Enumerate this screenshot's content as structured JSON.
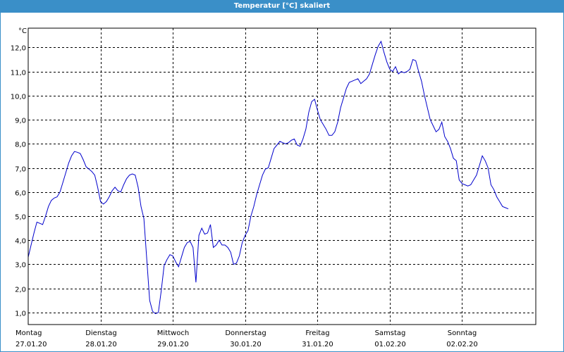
{
  "window": {
    "title": "Temperatur [°C] skaliert"
  },
  "colors": {
    "titlebar": "#3a8fc8",
    "line": "#0000cc",
    "grid": "#000000",
    "background": "#ffffff"
  },
  "chart_data": {
    "type": "line",
    "title": "Temperatur [°C] skaliert",
    "ylabel": "°C",
    "xlabel": "",
    "ylim": [
      0.5,
      12.8
    ],
    "yticks": [
      "1,0",
      "2,0",
      "3,0",
      "4,0",
      "5,0",
      "6,0",
      "7,0",
      "8,0",
      "9,0",
      "10,0",
      "11,0",
      "12,0"
    ],
    "ytick_values": [
      1,
      2,
      3,
      4,
      5,
      6,
      7,
      8,
      9,
      10,
      11,
      12
    ],
    "xlim": [
      0,
      7.02
    ],
    "day_labels": [
      {
        "day": "Montag",
        "date": "27.01.20"
      },
      {
        "day": "Dienstag",
        "date": "28.01.20"
      },
      {
        "day": "Mittwoch",
        "date": "29.01.20"
      },
      {
        "day": "Donnerstag",
        "date": "30.01.20"
      },
      {
        "day": "Freitag",
        "date": "31.01.20"
      },
      {
        "day": "Samstag",
        "date": "01.02.20"
      },
      {
        "day": "Sonntag",
        "date": "02.02.20"
      }
    ],
    "grid": true,
    "series": [
      {
        "color": "#0000cc",
        "points": [
          [
            0.0,
            3.3
          ],
          [
            0.04,
            3.8
          ],
          [
            0.08,
            4.3
          ],
          [
            0.12,
            4.75
          ],
          [
            0.16,
            4.7
          ],
          [
            0.2,
            4.65
          ],
          [
            0.24,
            5.0
          ],
          [
            0.28,
            5.4
          ],
          [
            0.32,
            5.65
          ],
          [
            0.36,
            5.75
          ],
          [
            0.4,
            5.8
          ],
          [
            0.44,
            6.0
          ],
          [
            0.48,
            6.4
          ],
          [
            0.52,
            6.8
          ],
          [
            0.56,
            7.2
          ],
          [
            0.6,
            7.5
          ],
          [
            0.64,
            7.68
          ],
          [
            0.68,
            7.65
          ],
          [
            0.72,
            7.6
          ],
          [
            0.76,
            7.35
          ],
          [
            0.8,
            7.05
          ],
          [
            0.84,
            6.95
          ],
          [
            0.88,
            6.85
          ],
          [
            0.92,
            6.7
          ],
          [
            0.96,
            6.2
          ],
          [
            1.0,
            5.6
          ],
          [
            1.04,
            5.5
          ],
          [
            1.08,
            5.6
          ],
          [
            1.12,
            5.8
          ],
          [
            1.16,
            6.05
          ],
          [
            1.2,
            6.2
          ],
          [
            1.24,
            6.05
          ],
          [
            1.28,
            6.0
          ],
          [
            1.32,
            6.3
          ],
          [
            1.36,
            6.55
          ],
          [
            1.4,
            6.7
          ],
          [
            1.44,
            6.75
          ],
          [
            1.48,
            6.7
          ],
          [
            1.52,
            6.2
          ],
          [
            1.56,
            5.4
          ],
          [
            1.6,
            4.9
          ],
          [
            1.64,
            3.2
          ],
          [
            1.68,
            1.5
          ],
          [
            1.72,
            1.05
          ],
          [
            1.76,
            0.95
          ],
          [
            1.8,
            1.0
          ],
          [
            1.84,
            1.9
          ],
          [
            1.88,
            2.95
          ],
          [
            1.92,
            3.2
          ],
          [
            1.96,
            3.4
          ],
          [
            2.0,
            3.35
          ],
          [
            2.04,
            3.1
          ],
          [
            2.08,
            2.9
          ],
          [
            2.12,
            3.3
          ],
          [
            2.16,
            3.7
          ],
          [
            2.2,
            3.9
          ],
          [
            2.24,
            3.95
          ],
          [
            2.28,
            3.7
          ],
          [
            2.32,
            2.25
          ],
          [
            2.36,
            4.2
          ],
          [
            2.4,
            4.5
          ],
          [
            2.44,
            4.25
          ],
          [
            2.48,
            4.3
          ],
          [
            2.52,
            4.65
          ],
          [
            2.56,
            3.7
          ],
          [
            2.6,
            3.8
          ],
          [
            2.64,
            4.0
          ],
          [
            2.68,
            3.8
          ],
          [
            2.72,
            3.8
          ],
          [
            2.76,
            3.7
          ],
          [
            2.8,
            3.5
          ],
          [
            2.84,
            3.0
          ],
          [
            2.88,
            3.05
          ],
          [
            2.92,
            3.35
          ],
          [
            2.96,
            3.9
          ],
          [
            3.0,
            4.2
          ],
          [
            3.04,
            4.4
          ],
          [
            3.08,
            5.0
          ],
          [
            3.12,
            5.4
          ],
          [
            3.16,
            5.9
          ],
          [
            3.2,
            6.3
          ],
          [
            3.24,
            6.7
          ],
          [
            3.28,
            6.95
          ],
          [
            3.32,
            7.0
          ],
          [
            3.36,
            7.4
          ],
          [
            3.4,
            7.8
          ],
          [
            3.44,
            7.95
          ],
          [
            3.48,
            8.1
          ],
          [
            3.52,
            8.05
          ],
          [
            3.56,
            8.0
          ],
          [
            3.6,
            8.05
          ],
          [
            3.64,
            8.15
          ],
          [
            3.68,
            8.2
          ],
          [
            3.72,
            7.95
          ],
          [
            3.76,
            7.9
          ],
          [
            3.8,
            8.2
          ],
          [
            3.84,
            8.6
          ],
          [
            3.88,
            9.3
          ],
          [
            3.92,
            9.75
          ],
          [
            3.96,
            9.85
          ],
          [
            4.0,
            9.4
          ],
          [
            4.04,
            9.0
          ],
          [
            4.08,
            8.8
          ],
          [
            4.12,
            8.6
          ],
          [
            4.16,
            8.35
          ],
          [
            4.2,
            8.35
          ],
          [
            4.24,
            8.5
          ],
          [
            4.28,
            8.9
          ],
          [
            4.32,
            9.5
          ],
          [
            4.36,
            9.9
          ],
          [
            4.4,
            10.3
          ],
          [
            4.44,
            10.55
          ],
          [
            4.48,
            10.6
          ],
          [
            4.52,
            10.65
          ],
          [
            4.56,
            10.7
          ],
          [
            4.6,
            10.5
          ],
          [
            4.64,
            10.6
          ],
          [
            4.68,
            10.7
          ],
          [
            4.72,
            10.9
          ],
          [
            4.76,
            11.3
          ],
          [
            4.8,
            11.7
          ],
          [
            4.84,
            12.05
          ],
          [
            4.88,
            12.25
          ],
          [
            4.92,
            11.8
          ],
          [
            4.96,
            11.4
          ],
          [
            5.0,
            11.1
          ],
          [
            5.04,
            11.0
          ],
          [
            5.08,
            11.2
          ],
          [
            5.12,
            10.9
          ],
          [
            5.16,
            11.0
          ],
          [
            5.2,
            10.95
          ],
          [
            5.24,
            11.0
          ],
          [
            5.28,
            11.1
          ],
          [
            5.32,
            11.5
          ],
          [
            5.36,
            11.45
          ],
          [
            5.4,
            11.0
          ],
          [
            5.44,
            10.6
          ],
          [
            5.48,
            10.0
          ],
          [
            5.52,
            9.5
          ],
          [
            5.56,
            9.0
          ],
          [
            5.6,
            8.75
          ],
          [
            5.64,
            8.5
          ],
          [
            5.68,
            8.6
          ],
          [
            5.72,
            8.9
          ],
          [
            5.76,
            8.3
          ],
          [
            5.8,
            8.1
          ],
          [
            5.84,
            7.8
          ],
          [
            5.88,
            7.4
          ],
          [
            5.92,
            7.3
          ],
          [
            5.96,
            6.5
          ],
          [
            6.0,
            6.35
          ],
          [
            6.04,
            6.3
          ],
          [
            6.08,
            6.25
          ],
          [
            6.12,
            6.3
          ],
          [
            6.16,
            6.5
          ],
          [
            6.2,
            6.7
          ],
          [
            6.24,
            7.1
          ],
          [
            6.28,
            7.5
          ],
          [
            6.32,
            7.3
          ],
          [
            6.36,
            7.0
          ],
          [
            6.4,
            6.3
          ],
          [
            6.44,
            6.1
          ],
          [
            6.48,
            5.8
          ],
          [
            6.52,
            5.6
          ],
          [
            6.56,
            5.4
          ],
          [
            6.6,
            5.35
          ],
          [
            6.64,
            5.3
          ]
        ]
      }
    ]
  }
}
